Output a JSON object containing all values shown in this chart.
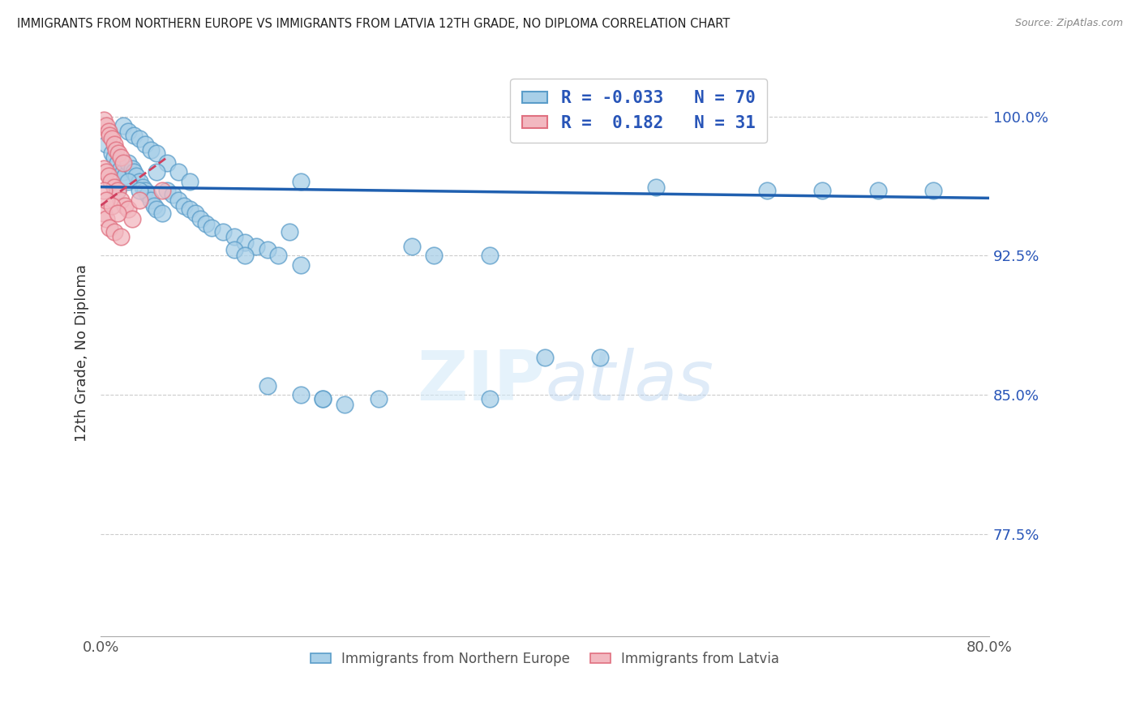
{
  "title": "IMMIGRANTS FROM NORTHERN EUROPE VS IMMIGRANTS FROM LATVIA 12TH GRADE, NO DIPLOMA CORRELATION CHART",
  "source": "Source: ZipAtlas.com",
  "xlabel_bottom_left": "0.0%",
  "xlabel_bottom_right": "80.0%",
  "ylabel": "12th Grade, No Diploma",
  "ytick_labels": [
    "100.0%",
    "92.5%",
    "85.0%",
    "77.5%"
  ],
  "ytick_values": [
    1.0,
    0.925,
    0.85,
    0.775
  ],
  "xmin": 0.0,
  "xmax": 0.8,
  "ymin": 0.72,
  "ymax": 1.025,
  "legend_blue_R": "-0.033",
  "legend_blue_N": "70",
  "legend_pink_R": "0.182",
  "legend_pink_N": "31",
  "blue_color": "#a8cfe8",
  "pink_color": "#f2b8c0",
  "blue_edge_color": "#5b9dc9",
  "pink_edge_color": "#e07080",
  "line_blue_color": "#2060b0",
  "line_pink_color": "#d04060",
  "legend_text_color": "#2855b8",
  "watermark_color": "#d0e8f8",
  "blue_scatter_x": [
    0.005,
    0.01,
    0.012,
    0.015,
    0.018,
    0.02,
    0.022,
    0.025,
    0.028,
    0.03,
    0.032,
    0.035,
    0.038,
    0.04,
    0.042,
    0.045,
    0.048,
    0.05,
    0.055,
    0.06,
    0.065,
    0.07,
    0.075,
    0.08,
    0.085,
    0.09,
    0.095,
    0.1,
    0.11,
    0.12,
    0.13,
    0.14,
    0.15,
    0.16,
    0.17,
    0.18,
    0.02,
    0.025,
    0.03,
    0.035,
    0.04,
    0.045,
    0.05,
    0.06,
    0.07,
    0.08,
    0.015,
    0.025,
    0.035,
    0.05,
    0.28,
    0.3,
    0.35,
    0.4,
    0.15,
    0.18,
    0.2,
    0.22,
    0.12,
    0.13,
    0.35,
    0.25,
    0.2,
    0.18,
    0.6,
    0.7,
    0.75,
    0.65,
    0.5,
    0.45
  ],
  "blue_scatter_y": [
    0.985,
    0.98,
    0.978,
    0.975,
    0.972,
    0.97,
    0.968,
    0.975,
    0.972,
    0.97,
    0.968,
    0.965,
    0.962,
    0.96,
    0.958,
    0.955,
    0.952,
    0.95,
    0.948,
    0.96,
    0.958,
    0.955,
    0.952,
    0.95,
    0.948,
    0.945,
    0.942,
    0.94,
    0.938,
    0.935,
    0.932,
    0.93,
    0.928,
    0.925,
    0.938,
    0.965,
    0.995,
    0.992,
    0.99,
    0.988,
    0.985,
    0.982,
    0.98,
    0.975,
    0.97,
    0.965,
    0.96,
    0.965,
    0.96,
    0.97,
    0.93,
    0.925,
    0.925,
    0.87,
    0.855,
    0.85,
    0.848,
    0.845,
    0.928,
    0.925,
    0.848,
    0.848,
    0.848,
    0.92,
    0.96,
    0.96,
    0.96,
    0.96,
    0.962,
    0.87
  ],
  "pink_scatter_x": [
    0.003,
    0.005,
    0.007,
    0.008,
    0.01,
    0.012,
    0.014,
    0.016,
    0.018,
    0.02,
    0.003,
    0.005,
    0.007,
    0.009,
    0.012,
    0.015,
    0.018,
    0.022,
    0.025,
    0.028,
    0.003,
    0.005,
    0.008,
    0.012,
    0.018,
    0.003,
    0.005,
    0.01,
    0.015,
    0.035,
    0.055
  ],
  "pink_scatter_y": [
    0.998,
    0.995,
    0.992,
    0.99,
    0.988,
    0.985,
    0.982,
    0.98,
    0.978,
    0.975,
    0.972,
    0.97,
    0.968,
    0.965,
    0.962,
    0.96,
    0.955,
    0.952,
    0.95,
    0.945,
    0.948,
    0.945,
    0.94,
    0.938,
    0.935,
    0.96,
    0.955,
    0.952,
    0.948,
    0.955,
    0.96
  ],
  "blue_line_x": [
    0.0,
    0.8
  ],
  "blue_line_y": [
    0.962,
    0.956
  ],
  "pink_line_x": [
    0.0,
    0.06
  ],
  "pink_line_y": [
    0.952,
    0.978
  ],
  "pink_line_dashed": true
}
